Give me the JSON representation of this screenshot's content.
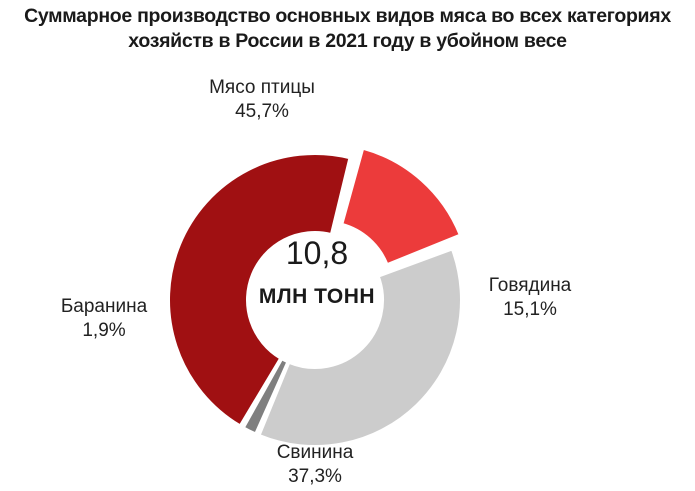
{
  "chart_data": {
    "type": "pie",
    "title_line1": "Суммарное производство основных видов мяса во всех категориях",
    "title_line2": "хозяйств в России в  2021 году в убойном весе",
    "center_value": "10,8",
    "center_unit": "МЛН ТОНН",
    "slices": [
      {
        "name": "Мясо птицы",
        "value": 45.7,
        "label": "45,7%",
        "color": "#a01012"
      },
      {
        "name": "Говядина",
        "value": 15.1,
        "label": "15,1%",
        "color": "#ec3b3b"
      },
      {
        "name": "Свинина",
        "value": 37.3,
        "label": "37,3%",
        "color": "#cccccc"
      },
      {
        "name": "Баранина",
        "value": 1.9,
        "label": "1,9%",
        "color": "#7f7f7f"
      }
    ]
  }
}
